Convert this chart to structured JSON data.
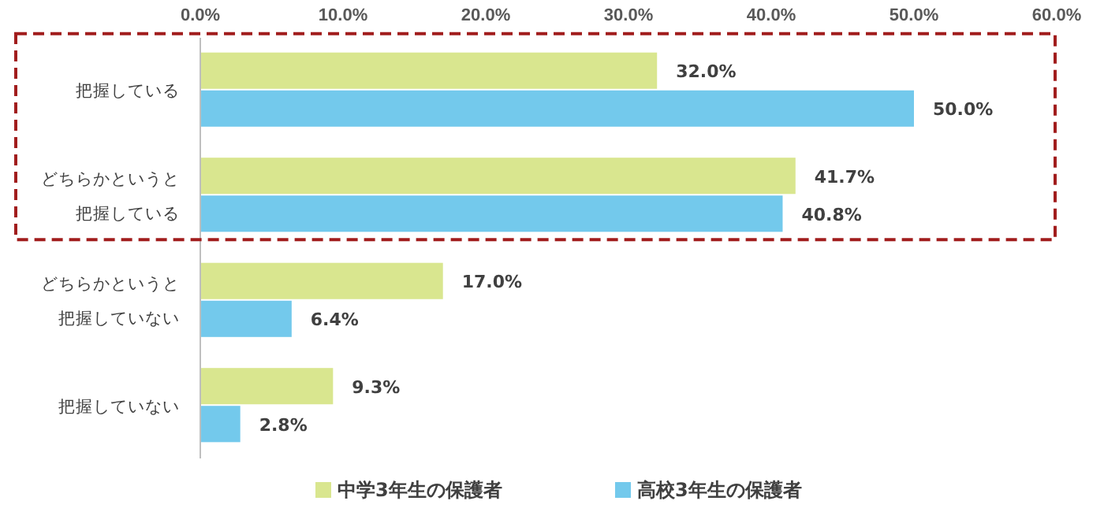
{
  "chart_data": {
    "type": "bar",
    "orientation": "horizontal",
    "categories": [
      "把握している",
      "どちらかというと把握している",
      "どちらかというと把握していない",
      "把握していない"
    ],
    "series": [
      {
        "name": "中学3年生の保護者",
        "color": "#d9e68f",
        "values": [
          32.0,
          41.7,
          17.0,
          9.3
        ],
        "value_labels": [
          "32.0%",
          "41.7%",
          "17.0%",
          "9.3%"
        ]
      },
      {
        "name": "高校3年生の保護者",
        "color": "#73c9ec",
        "values": [
          50.0,
          40.8,
          6.4,
          2.8
        ],
        "value_labels": [
          "50.0%",
          "40.8%",
          "6.4%",
          "2.8%"
        ]
      }
    ],
    "xlim": [
      0,
      60
    ],
    "xticks": [
      {
        "value": 0,
        "label": "0.0%"
      },
      {
        "value": 10,
        "label": "10.0%"
      },
      {
        "value": 20,
        "label": "20.0%"
      },
      {
        "value": 30,
        "label": "30.0%"
      },
      {
        "value": 40,
        "label": "40.0%"
      },
      {
        "value": 50,
        "label": "50.0%"
      },
      {
        "value": 60,
        "label": "60.0%"
      }
    ],
    "grid": false,
    "legend": "bottom"
  }
}
